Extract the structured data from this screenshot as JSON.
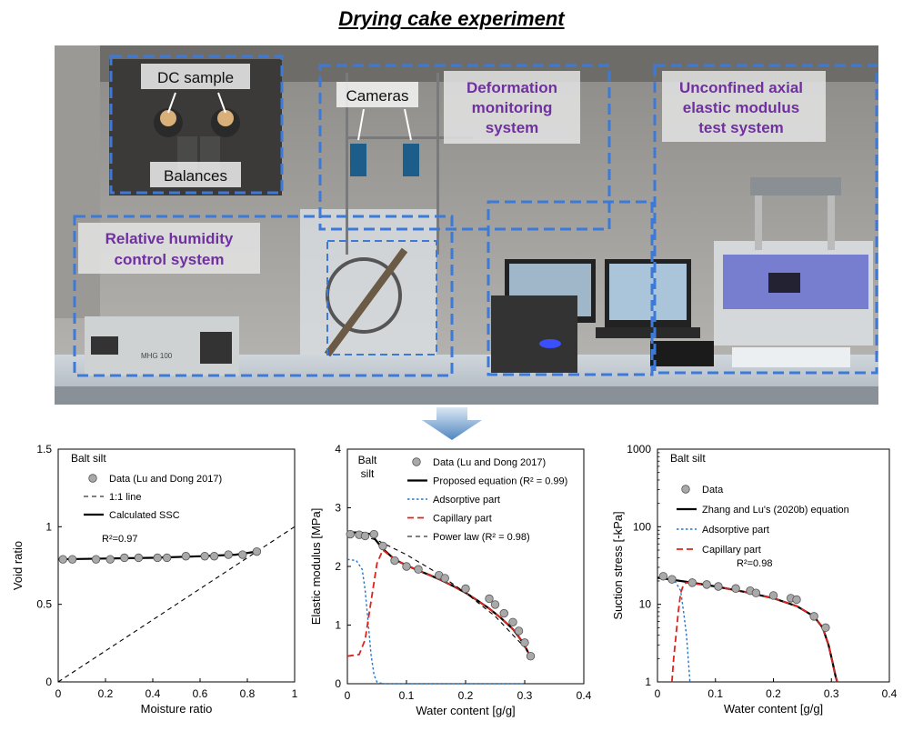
{
  "figure": {
    "title": "Drying cake experiment"
  },
  "photo": {
    "labels": {
      "dc_sample": "DC sample",
      "balances": "Balances",
      "cameras": "Cameras",
      "deformation": [
        "Deformation",
        "monitoring",
        "system"
      ],
      "unconfined": [
        "Unconfined axial",
        "elastic modulus",
        "test system"
      ],
      "humidity": [
        "Relative humidity",
        "control system"
      ]
    },
    "device_text": "MHG 100"
  },
  "chart_data": [
    {
      "type": "scatter",
      "id": "a",
      "annotation": "Balt silt",
      "xlabel": "Moisture ratio",
      "ylabel": "Void ratio",
      "xlim": [
        0,
        1
      ],
      "ylim": [
        0,
        1.5
      ],
      "xticks": [
        0,
        0.2,
        0.4,
        0.6,
        0.8,
        1
      ],
      "xtick_labels": [
        "0",
        "0.2",
        "0.4",
        "0.6",
        "0.8",
        "1"
      ],
      "yticks": [
        0,
        0.5,
        1,
        1.5
      ],
      "ytick_labels": [
        "0",
        "0.5",
        "1",
        "1.5"
      ],
      "r2": "R²=0.97",
      "series": [
        {
          "name": "Data (Lu and Dong 2017)",
          "kind": "points",
          "x": [
            0.02,
            0.06,
            0.16,
            0.22,
            0.28,
            0.34,
            0.42,
            0.46,
            0.54,
            0.62,
            0.66,
            0.72,
            0.78,
            0.84
          ],
          "y": [
            0.79,
            0.79,
            0.79,
            0.79,
            0.8,
            0.8,
            0.8,
            0.8,
            0.81,
            0.81,
            0.81,
            0.82,
            0.82,
            0.84
          ]
        },
        {
          "name": "1:1 line",
          "kind": "line",
          "style": "dash-black",
          "x": [
            0,
            1
          ],
          "y": [
            0,
            1
          ]
        },
        {
          "name": "Calculated SSC",
          "kind": "line",
          "style": "solid-black",
          "x": [
            0,
            0.2,
            0.4,
            0.6,
            0.75,
            0.84
          ],
          "y": [
            0.79,
            0.795,
            0.8,
            0.81,
            0.82,
            0.84
          ]
        }
      ]
    },
    {
      "type": "line",
      "id": "b",
      "annotation": [
        "Balt",
        "silt"
      ],
      "xlabel": "Water content [g/g]",
      "ylabel": "Elastic modulus [MPa]",
      "xlim": [
        0,
        0.4
      ],
      "ylim": [
        0,
        4
      ],
      "xticks": [
        0,
        0.1,
        0.2,
        0.3,
        0.4
      ],
      "xtick_labels": [
        "0",
        "0.1",
        "0.2",
        "0.3",
        "0.4"
      ],
      "yticks": [
        0,
        1,
        2,
        3,
        4
      ],
      "ytick_labels": [
        "0",
        "1",
        "2",
        "3",
        "4"
      ],
      "series": [
        {
          "name": "Data (Lu and Dong 2017)",
          "kind": "points",
          "x": [
            0.005,
            0.02,
            0.03,
            0.045,
            0.06,
            0.08,
            0.1,
            0.12,
            0.155,
            0.165,
            0.2,
            0.24,
            0.25,
            0.265,
            0.28,
            0.29,
            0.3,
            0.31
          ],
          "y": [
            2.55,
            2.54,
            2.52,
            2.55,
            2.35,
            2.1,
            2.0,
            1.95,
            1.85,
            1.8,
            1.62,
            1.45,
            1.35,
            1.2,
            1.05,
            0.9,
            0.7,
            0.47
          ]
        },
        {
          "name": "Proposed equation (R² = 0.99)",
          "kind": "line",
          "style": "solid-black",
          "x": [
            0,
            0.02,
            0.04,
            0.06,
            0.08,
            0.1,
            0.12,
            0.14,
            0.16,
            0.18,
            0.2,
            0.22,
            0.24,
            0.26,
            0.28,
            0.29,
            0.3,
            0.31
          ],
          "y": [
            2.58,
            2.58,
            2.55,
            2.3,
            2.12,
            2.02,
            1.93,
            1.85,
            1.76,
            1.66,
            1.55,
            1.42,
            1.28,
            1.12,
            0.93,
            0.8,
            0.65,
            0.45
          ]
        },
        {
          "name": "Adsorptive part",
          "kind": "line",
          "style": "dot-blue",
          "x": [
            0,
            0.015,
            0.025,
            0.03,
            0.035,
            0.04,
            0.045,
            0.05,
            0.06,
            0.3
          ],
          "y": [
            2.12,
            2.1,
            1.95,
            1.6,
            1.05,
            0.5,
            0.15,
            0.03,
            0,
            0
          ]
        },
        {
          "name": "Capillary part",
          "kind": "line",
          "style": "dash-red",
          "x": [
            0,
            0.02,
            0.03,
            0.04,
            0.05,
            0.06,
            0.08,
            0.1,
            0.12,
            0.14,
            0.16,
            0.18,
            0.2,
            0.22,
            0.24,
            0.26,
            0.28,
            0.29,
            0.3,
            0.31
          ],
          "y": [
            0.47,
            0.5,
            0.75,
            1.4,
            2.05,
            2.28,
            2.12,
            2.02,
            1.93,
            1.85,
            1.76,
            1.66,
            1.55,
            1.42,
            1.28,
            1.12,
            0.93,
            0.8,
            0.65,
            0.45
          ]
        },
        {
          "name": "Power law (R² = 0.98)",
          "kind": "line",
          "style": "dash-black",
          "x": [
            0,
            0.05,
            0.1,
            0.15,
            0.2,
            0.25,
            0.3
          ],
          "y": [
            2.58,
            2.45,
            2.2,
            1.9,
            1.55,
            1.15,
            0.62
          ]
        }
      ]
    },
    {
      "type": "line",
      "id": "c",
      "annotation": "Balt silt",
      "xlabel": "Water content [g/g]",
      "ylabel": "Suction stress [-kPa]",
      "yscale": "log",
      "xlim": [
        0,
        0.4
      ],
      "ylim": [
        1,
        1000
      ],
      "xticks": [
        0,
        0.1,
        0.2,
        0.3,
        0.4
      ],
      "xtick_labels": [
        "0",
        "0.1",
        "0.2",
        "0.3",
        "0.4"
      ],
      "yticks": [
        1,
        10,
        100,
        1000
      ],
      "ytick_labels": [
        "1",
        "10",
        "100",
        "1000"
      ],
      "r2": "R²=0.98",
      "series": [
        {
          "name": "Data",
          "kind": "points",
          "x": [
            0.01,
            0.025,
            0.06,
            0.085,
            0.105,
            0.135,
            0.16,
            0.17,
            0.2,
            0.23,
            0.24,
            0.27,
            0.29
          ],
          "y": [
            23,
            21,
            19,
            18,
            17,
            16,
            15,
            14,
            13,
            12,
            11.5,
            7,
            5
          ]
        },
        {
          "name": "Zhang and Lu's (2020b) equation",
          "kind": "line",
          "style": "solid-black",
          "x": [
            0,
            0.02,
            0.05,
            0.1,
            0.15,
            0.2,
            0.24,
            0.27,
            0.285,
            0.295,
            0.302,
            0.307,
            0.31
          ],
          "y": [
            22,
            21,
            19.5,
            17,
            14.5,
            12,
            9.5,
            7,
            5,
            3,
            1.8,
            1.2,
            1
          ]
        },
        {
          "name": "Adsorptive part",
          "kind": "line",
          "style": "dot-blue",
          "x": [
            0.03,
            0.04,
            0.045,
            0.05,
            0.053,
            0.056
          ],
          "y": [
            20,
            15,
            8,
            4,
            2,
            1
          ]
        },
        {
          "name": "Capillary part",
          "kind": "line",
          "style": "dash-red",
          "x": [
            0.025,
            0.028,
            0.032,
            0.036,
            0.04,
            0.045,
            0.05,
            0.1,
            0.15,
            0.2,
            0.24,
            0.27,
            0.285,
            0.295,
            0.302,
            0.307,
            0.31
          ],
          "y": [
            1,
            2,
            4,
            8,
            14,
            18,
            19,
            17,
            14.5,
            12,
            9.5,
            7,
            5,
            3,
            1.8,
            1.2,
            1
          ]
        }
      ]
    }
  ]
}
